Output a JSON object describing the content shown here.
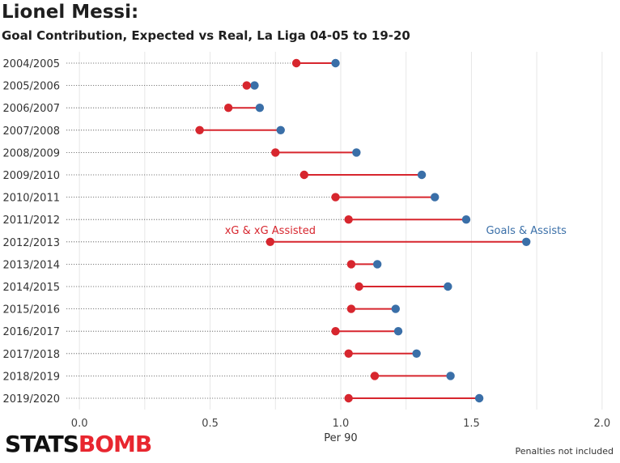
{
  "header": {
    "title": "Lionel Messi:",
    "subtitle": "Goal Contribution, Expected vs Real, La Liga 04-05 to 19-20"
  },
  "footer": {
    "brand_part1": "STATS",
    "brand_part2": "BOMB",
    "note": "Penalties not included"
  },
  "colors": {
    "xg": "#d7262e",
    "goals": "#3a6fa8",
    "grid": "#e6e6e6",
    "dotted_line": "#555555"
  },
  "chart_data": {
    "type": "dumbbell",
    "title": "Lionel Messi:",
    "subtitle": "Goal Contribution, Expected vs Real, La Liga 04-05 to 19-20",
    "xlabel": "Per 90",
    "ylabel": "",
    "xlim": [
      -0.05,
      2.05
    ],
    "xticks": [
      0.0,
      0.5,
      1.0,
      1.5,
      2.0
    ],
    "xtick_labels": [
      "0.0",
      "0.5",
      "1.0",
      "1.5",
      "2.0"
    ],
    "grid": true,
    "categories": [
      "2004/2005",
      "2005/2006",
      "2006/2007",
      "2007/2008",
      "2008/2009",
      "2009/2010",
      "2010/2011",
      "2011/2012",
      "2012/2013",
      "2013/2014",
      "2014/2015",
      "2015/2016",
      "2016/2017",
      "2017/2018",
      "2018/2019",
      "2019/2020"
    ],
    "series": [
      {
        "name": "xG & xG Assisted",
        "color": "#d7262e",
        "values": [
          0.83,
          0.64,
          0.57,
          0.46,
          0.75,
          0.86,
          0.98,
          1.03,
          0.73,
          1.04,
          1.07,
          1.04,
          0.98,
          1.03,
          1.13,
          1.03
        ]
      },
      {
        "name": "Goals & Assists",
        "color": "#3a6fa8",
        "values": [
          0.98,
          0.67,
          0.69,
          0.77,
          1.06,
          1.31,
          1.36,
          1.48,
          1.71,
          1.14,
          1.41,
          1.21,
          1.22,
          1.29,
          1.42,
          1.53
        ]
      }
    ],
    "annotations": [
      {
        "text": "xG & xG Assisted",
        "series": 0,
        "category": "2012/2013"
      },
      {
        "text": "Goals & Assists",
        "series": 1,
        "category": "2012/2013"
      }
    ]
  }
}
